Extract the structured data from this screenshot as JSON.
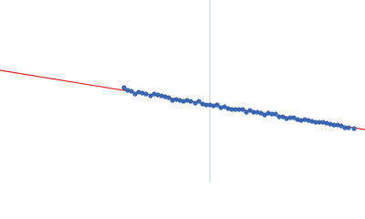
{
  "chart_data": {
    "type": "scatter",
    "xlim": [
      0,
      400
    ],
    "ylim": [
      0,
      200
    ],
    "vline": {
      "x": 230,
      "color": "#c8d0e0"
    },
    "series": [
      {
        "mode": "markers",
        "color": "#3a66b0",
        "x": [
          136,
          140,
          144,
          148,
          152,
          156,
          160,
          165,
          169,
          173,
          177,
          181,
          185,
          189,
          193,
          197,
          201,
          205,
          209,
          214,
          218,
          222,
          226,
          230,
          234,
          238,
          242,
          246,
          250,
          254,
          258,
          262,
          266,
          270,
          274,
          278,
          282,
          286,
          290,
          294,
          298,
          302,
          306,
          310,
          314,
          318,
          322,
          326,
          330,
          334,
          338,
          342,
          346,
          350,
          354,
          358,
          362,
          366,
          370,
          374,
          378,
          382,
          388
        ],
        "values": [
          104,
          101,
          100,
          97,
          99,
          98,
          97,
          95,
          97,
          96,
          95,
          94,
          93,
          90,
          91,
          90,
          89,
          90,
          89,
          87,
          89,
          86,
          85,
          85,
          84,
          85,
          82,
          83,
          81,
          80,
          80,
          80,
          80,
          77,
          79,
          77,
          77,
          76,
          74,
          76,
          75,
          75,
          72,
          72,
          70,
          71,
          71,
          69,
          68,
          69,
          68,
          67,
          66,
          66,
          66,
          65,
          64,
          63,
          63,
          62,
          60,
          60,
          59
        ]
      },
      {
        "mode": "line",
        "color": "#d62728",
        "x": [
          0,
          400
        ],
        "values": [
          123,
          58
        ]
      }
    ]
  }
}
